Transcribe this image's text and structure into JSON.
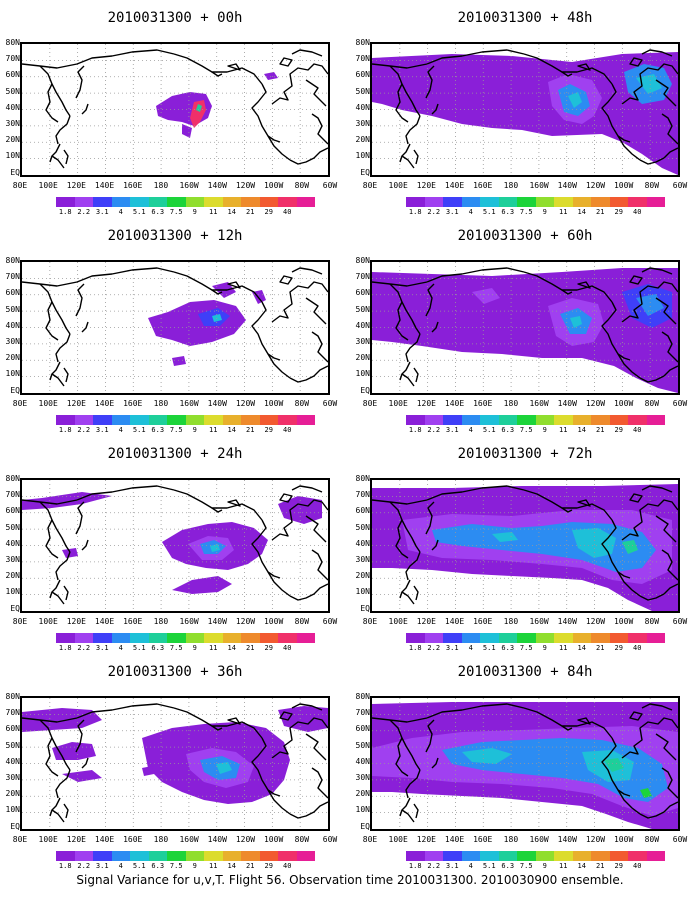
{
  "panels": [
    {
      "title": "2010031300 + 00h",
      "lead_hours": 0
    },
    {
      "title": "2010031300 + 48h",
      "lead_hours": 48
    },
    {
      "title": "2010031300 + 12h",
      "lead_hours": 12
    },
    {
      "title": "2010031300 + 60h",
      "lead_hours": 60
    },
    {
      "title": "2010031300 + 24h",
      "lead_hours": 24
    },
    {
      "title": "2010031300 + 72h",
      "lead_hours": 72
    },
    {
      "title": "2010031300 + 36h",
      "lead_hours": 36
    },
    {
      "title": "2010031300 + 84h",
      "lead_hours": 84
    }
  ],
  "lat_labels": [
    "80N",
    "70N",
    "60N",
    "50N",
    "40N",
    "30N",
    "20N",
    "10N",
    "EQ"
  ],
  "lon_labels": [
    "80E",
    "100E",
    "120E",
    "140E",
    "160E",
    "180",
    "160W",
    "140W",
    "120W",
    "100W",
    "80W",
    "60W"
  ],
  "colorbar": {
    "labels": [
      "1.8",
      "2.2",
      "3.1",
      "4",
      "5.1",
      "6.3",
      "7.5",
      "9",
      "11",
      "14",
      "21",
      "29",
      "40"
    ],
    "colors": [
      "#8a1fd8",
      "#a040f0",
      "#3f3ff8",
      "#2c8cf2",
      "#1ec0d8",
      "#1ecf9a",
      "#1cd43a",
      "#90de2e",
      "#dcdc2e",
      "#e8b02c",
      "#ee8a2c",
      "#f25a30",
      "#f0306a",
      "#e61e96"
    ]
  },
  "caption": "Signal Variance for u,v,T. Flight 56. Observation time 2010031300. 2010030900 ensemble."
}
